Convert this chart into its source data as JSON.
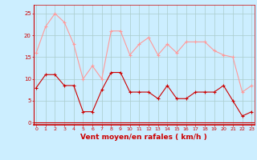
{
  "x": [
    0,
    1,
    2,
    3,
    4,
    5,
    6,
    7,
    8,
    9,
    10,
    11,
    12,
    13,
    14,
    15,
    16,
    17,
    18,
    19,
    20,
    21,
    22,
    23
  ],
  "wind_avg": [
    8,
    11,
    11,
    8.5,
    8.5,
    2.5,
    2.5,
    7.5,
    11.5,
    11.5,
    7,
    7,
    7,
    5.5,
    8.5,
    5.5,
    5.5,
    7,
    7,
    7,
    8.5,
    5,
    1.5,
    2.5
  ],
  "wind_gust": [
    16,
    22,
    25,
    23,
    18,
    10,
    13,
    10,
    21,
    21,
    15.5,
    18,
    19.5,
    15.5,
    18,
    16,
    18.5,
    18.5,
    18.5,
    16.5,
    15.5,
    15,
    7,
    8.5
  ],
  "avg_color": "#cc0000",
  "gust_color": "#ff9999",
  "bg_color": "#cceeff",
  "grid_color": "#aacccc",
  "xlabel": "Vent moyen/en rafales ( km/h )",
  "xlabel_color": "#cc0000",
  "ylabel_ticks": [
    0,
    5,
    10,
    15,
    20,
    25
  ],
  "xticks": [
    0,
    1,
    2,
    3,
    4,
    5,
    6,
    7,
    8,
    9,
    10,
    11,
    12,
    13,
    14,
    15,
    16,
    17,
    18,
    19,
    20,
    21,
    22,
    23
  ],
  "ylim": [
    -0.5,
    27
  ],
  "xlim": [
    -0.3,
    23.3
  ]
}
